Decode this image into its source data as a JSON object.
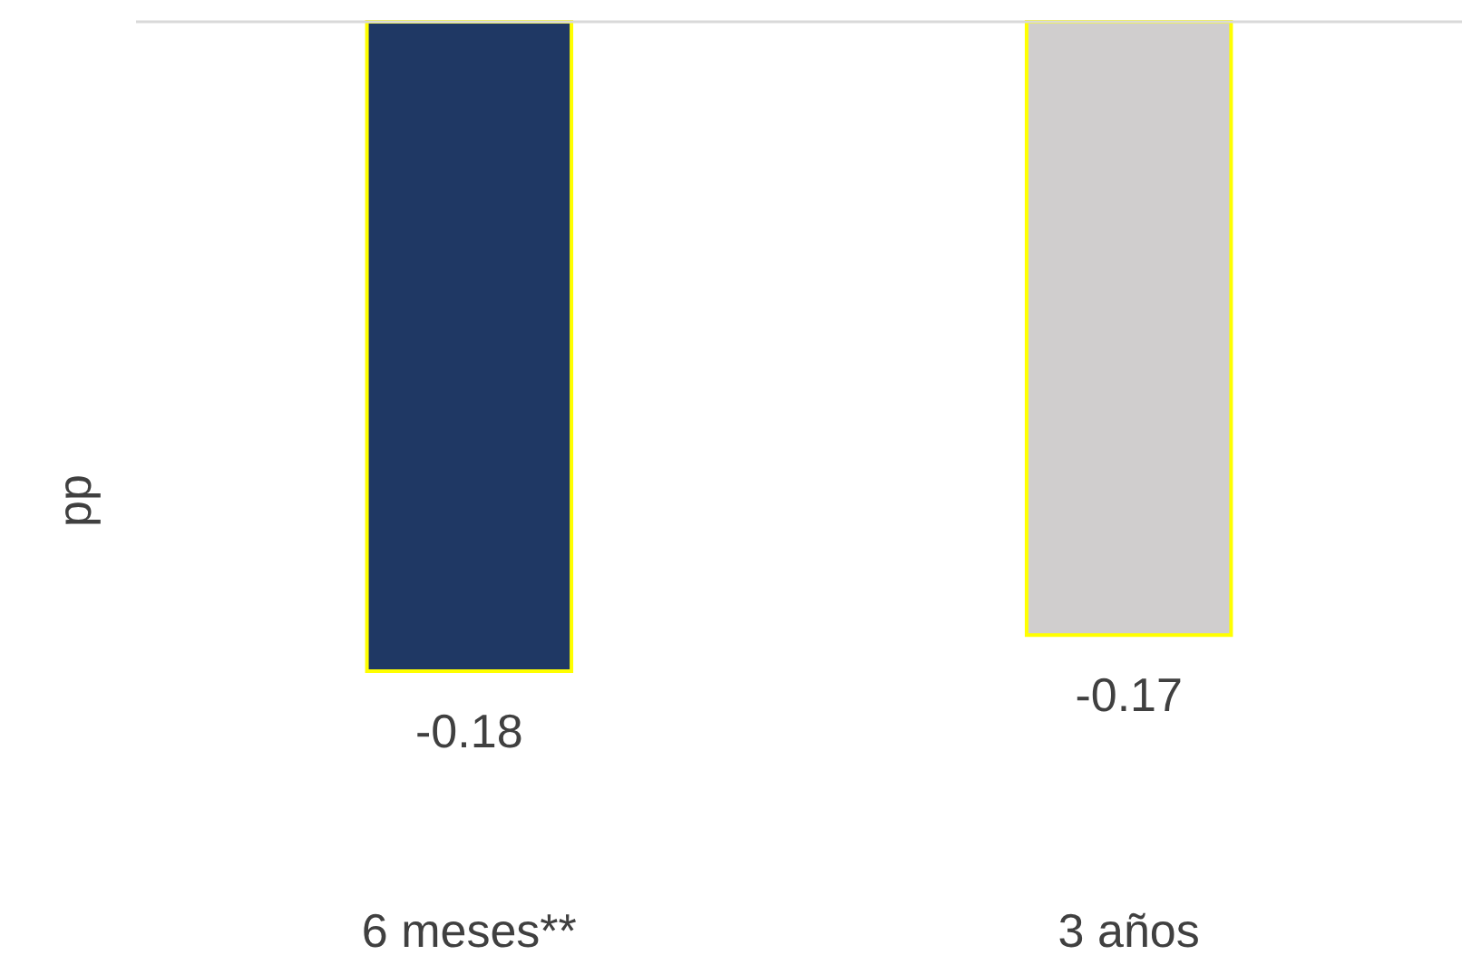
{
  "chart_data": {
    "type": "bar",
    "ylabel": "pp",
    "categories": [
      "6 meses**",
      "3 años"
    ],
    "values": [
      -0.18,
      -0.17
    ],
    "colors": [
      "#1f3864",
      "#d0cece"
    ],
    "data_labels": true
  }
}
